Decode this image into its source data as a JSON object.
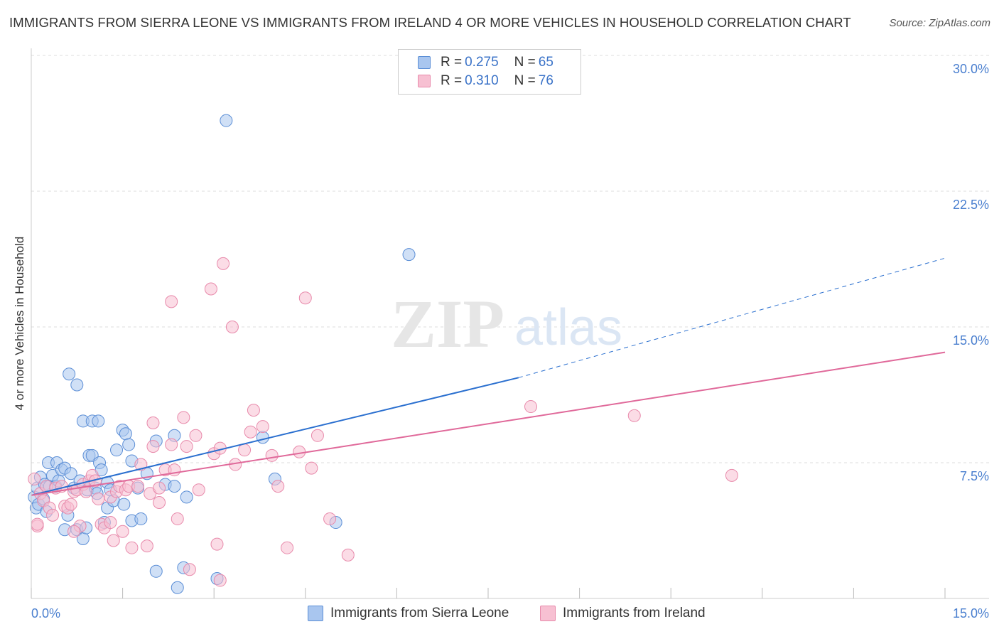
{
  "title": "IMMIGRANTS FROM SIERRA LEONE VS IMMIGRANTS FROM IRELAND 4 OR MORE VEHICLES IN HOUSEHOLD CORRELATION CHART",
  "source": "Source: ZipAtlas.com",
  "watermark": {
    "zip": "ZIP",
    "atlas": "atlas"
  },
  "colors": {
    "blue_fill": "#a9c6ef",
    "blue_stroke": "#5b8ed6",
    "blue_line": "#2a6fcf",
    "pink_fill": "#f7c0d2",
    "pink_stroke": "#e88aab",
    "pink_line": "#e0699a",
    "tick": "#4a7fcf",
    "grid": "#dddddd"
  },
  "legend": {
    "rows": [
      {
        "r_label": "R = ",
        "r_value": "0.275",
        "n_label": "N = ",
        "n_value": "65"
      },
      {
        "r_label": "R = ",
        "r_value": "0.310",
        "n_label": "N = ",
        "n_value": "76"
      }
    ]
  },
  "chart_data": {
    "type": "scatter",
    "title": "IMMIGRANTS FROM SIERRA LEONE VS IMMIGRANTS FROM IRELAND 4 OR MORE VEHICLES IN HOUSEHOLD CORRELATION CHART",
    "xlabel": "",
    "ylabel": "4 or more Vehicles in Household",
    "xlim": [
      0,
      15
    ],
    "ylim": [
      0,
      30
    ],
    "x_ticks": [
      0,
      1.5,
      3,
      4.5,
      6,
      7.5,
      9,
      10.5,
      12,
      13.5,
      15
    ],
    "x_tick_labels": [
      {
        "value": 0,
        "label": "0.0%"
      },
      {
        "value": 15,
        "label": "15.0%"
      }
    ],
    "y_ticks": [
      {
        "value": 7.5,
        "label": "7.5%"
      },
      {
        "value": 15,
        "label": "15.0%"
      },
      {
        "value": 22.5,
        "label": "22.5%"
      },
      {
        "value": 30,
        "label": "30.0%"
      }
    ],
    "grid": true,
    "series": [
      {
        "name": "Immigrants from Sierra Leone",
        "color": "blue",
        "R": 0.275,
        "N": 65,
        "trend": {
          "x0": 0,
          "y0": 5.7,
          "x1": 8,
          "y1": 12.2,
          "dashed_to_x": 15,
          "dashed_to_y": 18.8
        },
        "points": [
          [
            0.05,
            5.6
          ],
          [
            0.08,
            5.0
          ],
          [
            0.1,
            6.1
          ],
          [
            0.12,
            5.2
          ],
          [
            0.15,
            6.7
          ],
          [
            0.2,
            5.5
          ],
          [
            0.22,
            6.3
          ],
          [
            0.25,
            4.8
          ],
          [
            0.28,
            7.5
          ],
          [
            0.3,
            6.2
          ],
          [
            0.35,
            6.8
          ],
          [
            0.4,
            6.2
          ],
          [
            0.42,
            7.5
          ],
          [
            0.45,
            6.5
          ],
          [
            0.5,
            7.1
          ],
          [
            0.55,
            7.2
          ],
          [
            0.55,
            3.8
          ],
          [
            0.6,
            4.6
          ],
          [
            0.62,
            12.4
          ],
          [
            0.65,
            6.9
          ],
          [
            0.7,
            6.1
          ],
          [
            0.75,
            3.8
          ],
          [
            0.75,
            11.8
          ],
          [
            0.8,
            6.5
          ],
          [
            0.85,
            3.3
          ],
          [
            0.85,
            9.8
          ],
          [
            0.9,
            3.9
          ],
          [
            0.92,
            6.0
          ],
          [
            0.95,
            7.9
          ],
          [
            1.0,
            7.9
          ],
          [
            1.0,
            9.8
          ],
          [
            1.05,
            6.1
          ],
          [
            1.08,
            5.8
          ],
          [
            1.1,
            9.8
          ],
          [
            1.12,
            7.5
          ],
          [
            1.15,
            7.1
          ],
          [
            1.2,
            4.2
          ],
          [
            1.25,
            6.4
          ],
          [
            1.25,
            5.0
          ],
          [
            1.3,
            6.0
          ],
          [
            1.35,
            5.4
          ],
          [
            1.4,
            8.2
          ],
          [
            1.5,
            9.3
          ],
          [
            1.52,
            5.2
          ],
          [
            1.55,
            9.1
          ],
          [
            1.6,
            8.5
          ],
          [
            1.65,
            4.3
          ],
          [
            1.65,
            7.6
          ],
          [
            1.75,
            6.1
          ],
          [
            1.8,
            4.4
          ],
          [
            1.9,
            6.9
          ],
          [
            2.05,
            1.5
          ],
          [
            2.05,
            8.7
          ],
          [
            2.2,
            6.3
          ],
          [
            2.35,
            6.2
          ],
          [
            2.35,
            9.0
          ],
          [
            2.4,
            0.6
          ],
          [
            2.5,
            1.7
          ],
          [
            2.55,
            5.6
          ],
          [
            3.05,
            1.1
          ],
          [
            3.2,
            26.4
          ],
          [
            3.8,
            8.9
          ],
          [
            4.0,
            6.6
          ],
          [
            5.0,
            4.2
          ],
          [
            6.2,
            19.0
          ]
        ]
      },
      {
        "name": "Immigrants from Ireland",
        "color": "pink",
        "R": 0.31,
        "N": 76,
        "trend": {
          "x0": 0,
          "y0": 5.7,
          "x1": 15,
          "y1": 13.6
        },
        "points": [
          [
            0.05,
            6.6
          ],
          [
            0.1,
            4.0
          ],
          [
            0.15,
            5.8
          ],
          [
            0.2,
            5.4
          ],
          [
            0.25,
            6.2
          ],
          [
            0.3,
            5.0
          ],
          [
            0.35,
            4.6
          ],
          [
            0.4,
            6.1
          ],
          [
            0.5,
            6.2
          ],
          [
            0.55,
            5.1
          ],
          [
            0.6,
            5.0
          ],
          [
            0.65,
            5.2
          ],
          [
            0.7,
            5.9
          ],
          [
            0.75,
            6.0
          ],
          [
            0.8,
            4.0
          ],
          [
            0.85,
            6.3
          ],
          [
            0.9,
            5.9
          ],
          [
            0.95,
            6.5
          ],
          [
            1.0,
            6.8
          ],
          [
            1.05,
            6.5
          ],
          [
            1.1,
            5.5
          ],
          [
            1.15,
            4.1
          ],
          [
            1.2,
            3.9
          ],
          [
            1.3,
            5.6
          ],
          [
            1.3,
            4.2
          ],
          [
            1.35,
            3.2
          ],
          [
            1.4,
            5.9
          ],
          [
            1.45,
            6.2
          ],
          [
            1.5,
            3.7
          ],
          [
            1.55,
            6.0
          ],
          [
            1.6,
            6.2
          ],
          [
            1.65,
            2.8
          ],
          [
            1.75,
            6.2
          ],
          [
            1.8,
            7.4
          ],
          [
            1.9,
            2.9
          ],
          [
            1.95,
            5.8
          ],
          [
            2.0,
            8.4
          ],
          [
            2.0,
            9.7
          ],
          [
            2.1,
            5.3
          ],
          [
            2.1,
            6.1
          ],
          [
            2.2,
            7.1
          ],
          [
            2.3,
            8.5
          ],
          [
            2.3,
            16.4
          ],
          [
            2.35,
            7.1
          ],
          [
            2.4,
            4.4
          ],
          [
            2.5,
            10.0
          ],
          [
            2.55,
            8.4
          ],
          [
            2.6,
            1.6
          ],
          [
            2.7,
            9.0
          ],
          [
            2.75,
            6.0
          ],
          [
            2.95,
            17.1
          ],
          [
            3.0,
            8.0
          ],
          [
            3.05,
            3.0
          ],
          [
            3.1,
            1.0
          ],
          [
            3.1,
            8.3
          ],
          [
            3.15,
            18.5
          ],
          [
            3.3,
            15.0
          ],
          [
            3.35,
            7.4
          ],
          [
            3.5,
            8.2
          ],
          [
            3.6,
            9.2
          ],
          [
            3.65,
            10.4
          ],
          [
            3.8,
            9.5
          ],
          [
            3.95,
            7.9
          ],
          [
            4.05,
            6.2
          ],
          [
            4.2,
            2.8
          ],
          [
            4.5,
            16.6
          ],
          [
            4.6,
            7.2
          ],
          [
            4.7,
            9.0
          ],
          [
            4.9,
            4.4
          ],
          [
            5.2,
            2.4
          ],
          [
            8.2,
            10.6
          ],
          [
            9.9,
            10.1
          ],
          [
            11.5,
            6.8
          ],
          [
            0.1,
            4.1
          ],
          [
            0.7,
            3.7
          ],
          [
            4.4,
            8.1
          ]
        ]
      }
    ]
  },
  "bottom_legend": [
    {
      "label": "Immigrants from Sierra Leone"
    },
    {
      "label": "Immigrants from Ireland"
    }
  ]
}
